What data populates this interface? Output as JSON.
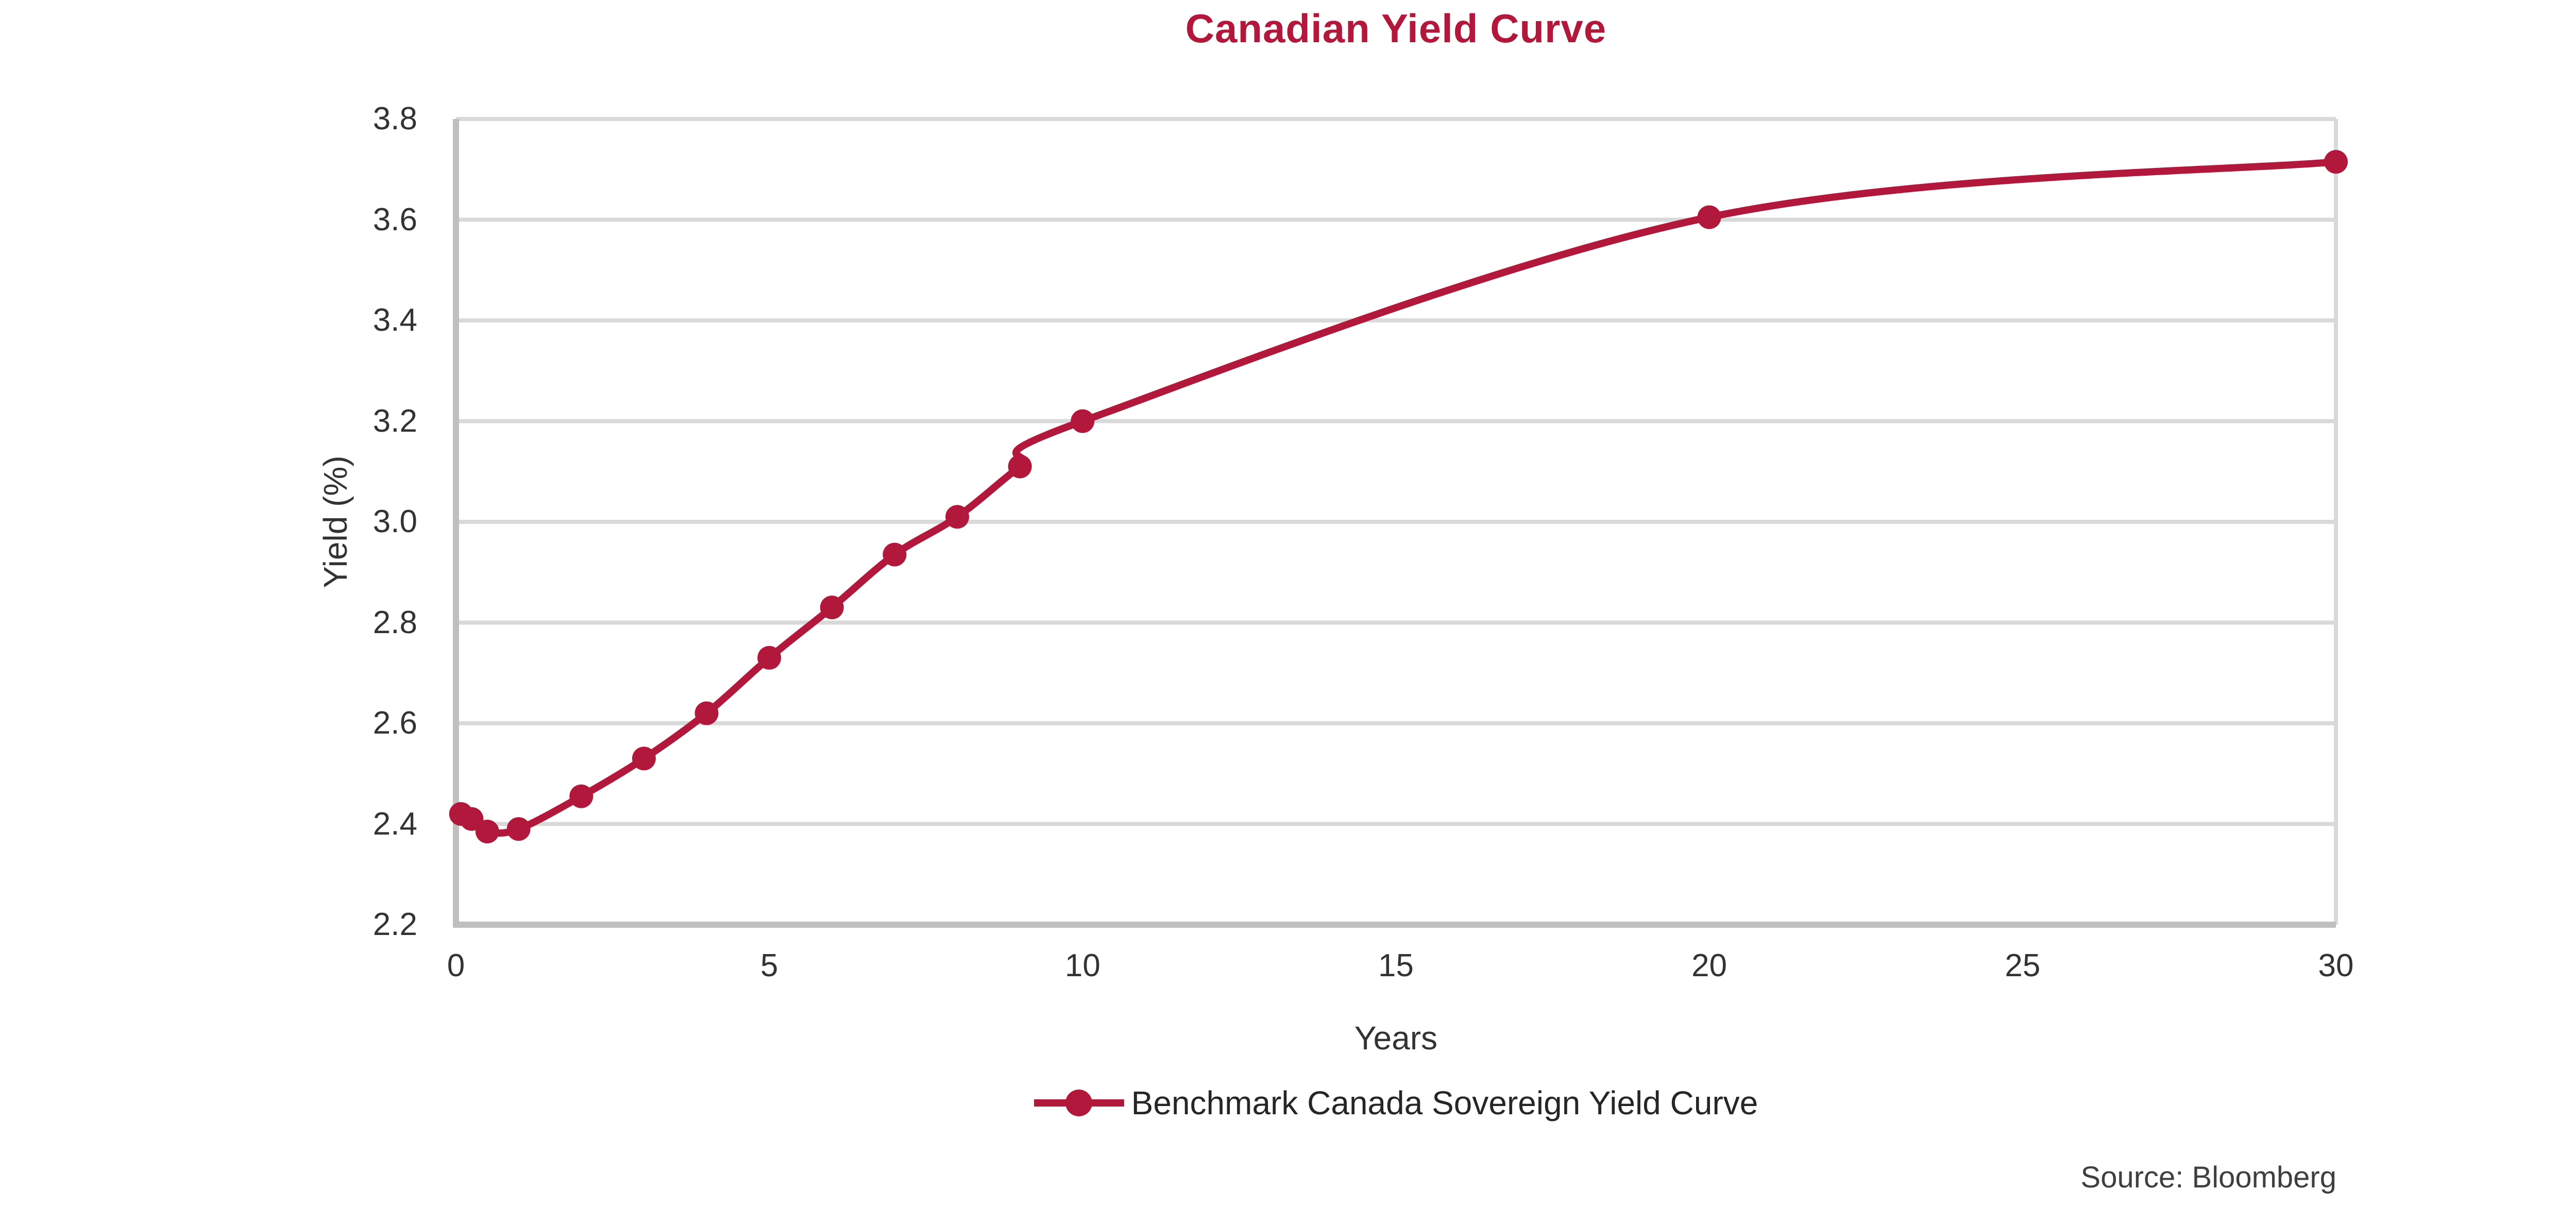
{
  "title": "Canadian Yield Curve",
  "source": "Source: Bloomberg",
  "colors": {
    "accent": "#B2183B",
    "gridline": "#D9D9D9",
    "axis": "#BFBFBF",
    "tick_text": "#333333",
    "legend_text": "#262626",
    "source_text": "#3f3f3f"
  },
  "chart_data": {
    "type": "line",
    "title": "Canadian Yield Curve",
    "xlabel": "Years",
    "ylabel": "Yield (%)",
    "xlim": [
      0,
      30
    ],
    "ylim": [
      2.2,
      3.8
    ],
    "x_ticks": [
      0,
      5,
      10,
      15,
      20,
      25,
      30
    ],
    "y_ticks": [
      2.2,
      2.4,
      2.6,
      2.8,
      3.0,
      3.2,
      3.4,
      3.6,
      3.8
    ],
    "grid": "horizontal-only",
    "line_style": "smooth",
    "marker": "circle",
    "legend_position": "bottom-center",
    "series": [
      {
        "name": "Benchmark Canada Sovereign Yield Curve",
        "color": "#B2183B",
        "x": [
          0.08,
          0.25,
          0.5,
          1,
          2,
          3,
          4,
          5,
          6,
          7,
          8,
          9,
          10,
          20,
          30
        ],
        "y": [
          2.42,
          2.41,
          2.385,
          2.39,
          2.455,
          2.53,
          2.62,
          2.73,
          2.83,
          2.935,
          3.01,
          3.11,
          3.2,
          3.605,
          3.715
        ]
      }
    ]
  }
}
